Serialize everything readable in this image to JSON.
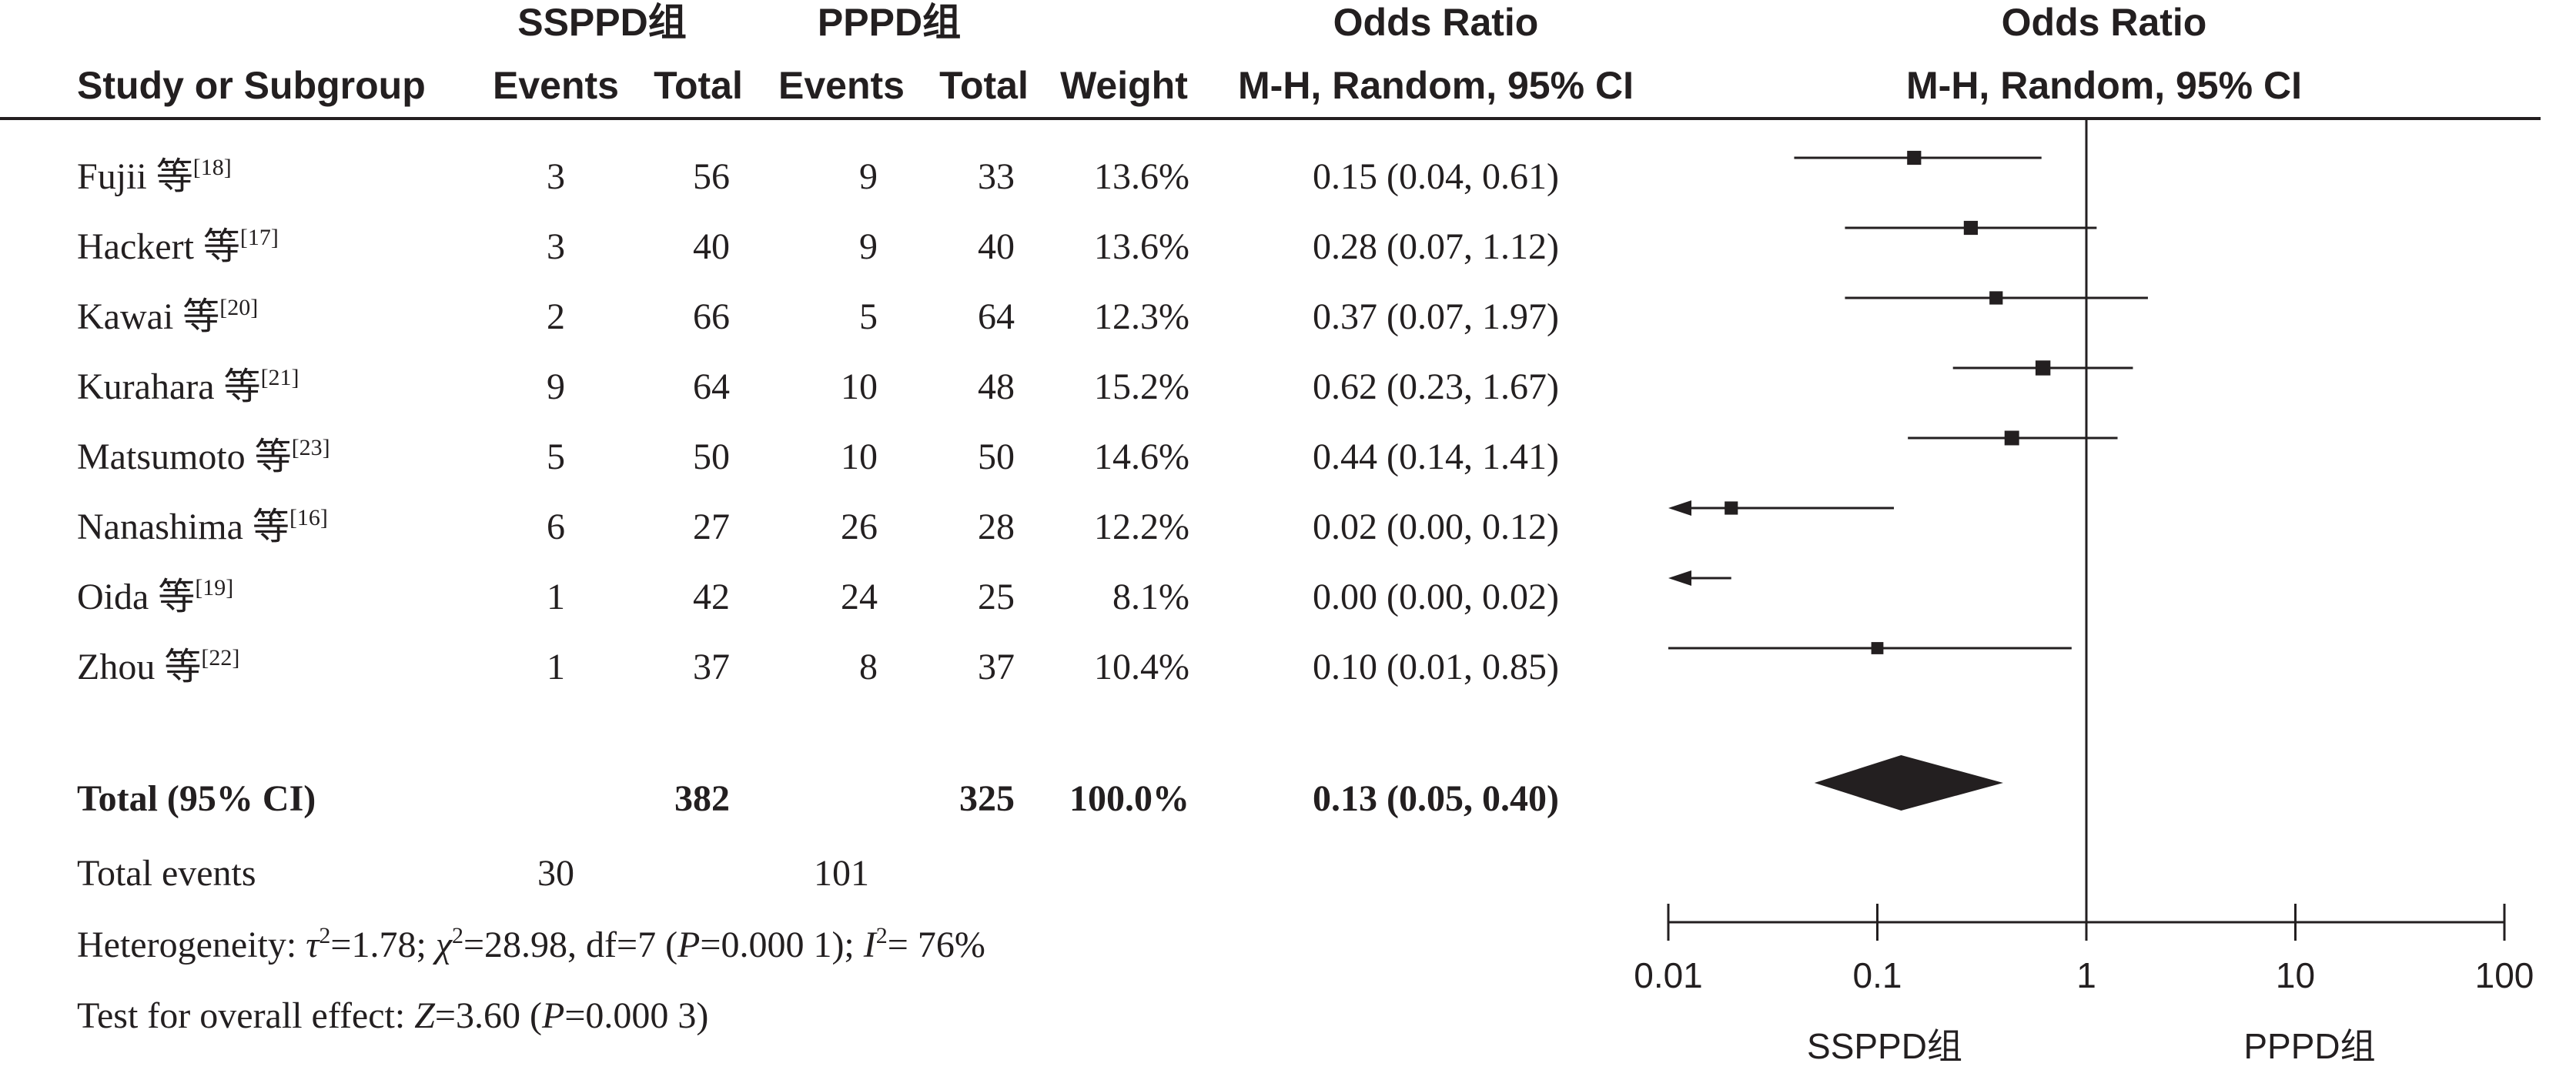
{
  "header": {
    "group1": "SSPPD组",
    "group2": "PPPD组",
    "study_col": "Study or Subgroup",
    "events": "Events",
    "total": "Total",
    "weight": "Weight",
    "or_title": "Odds Ratio",
    "or_method": "M-H, Random, 95% CI"
  },
  "rows": [
    {
      "name": "Fujii 等",
      "ref": "[18]",
      "e1": "3",
      "t1": "56",
      "e2": "9",
      "t2": "33",
      "weight": "13.6%",
      "ci": "0.15 (0.04, 0.61)"
    },
    {
      "name": "Hackert 等",
      "ref": "[17]",
      "e1": "3",
      "t1": "40",
      "e2": "9",
      "t2": "40",
      "weight": "13.6%",
      "ci": "0.28 (0.07, 1.12)"
    },
    {
      "name": "Kawai 等",
      "ref": "[20]",
      "e1": "2",
      "t1": "66",
      "e2": "5",
      "t2": "64",
      "weight": "12.3%",
      "ci": "0.37 (0.07, 1.97)"
    },
    {
      "name": "Kurahara 等",
      "ref": "[21]",
      "e1": "9",
      "t1": "64",
      "e2": "10",
      "t2": "48",
      "weight": "15.2%",
      "ci": "0.62 (0.23, 1.67)"
    },
    {
      "name": "Matsumoto 等",
      "ref": "[23]",
      "e1": "5",
      "t1": "50",
      "e2": "10",
      "t2": "50",
      "weight": "14.6%",
      "ci": "0.44 (0.14, 1.41)"
    },
    {
      "name": "Nanashima 等",
      "ref": "[16]",
      "e1": "6",
      "t1": "27",
      "e2": "26",
      "t2": "28",
      "weight": "12.2%",
      "ci": "0.02 (0.00, 0.12)"
    },
    {
      "name": "Oida 等",
      "ref": "[19]",
      "e1": "1",
      "t1": "42",
      "e2": "24",
      "t2": "25",
      "weight": "8.1%",
      "ci": "0.00 (0.00, 0.02)"
    },
    {
      "name": "Zhou 等",
      "ref": "[22]",
      "e1": "1",
      "t1": "37",
      "e2": "8",
      "t2": "37",
      "weight": "10.4%",
      "ci": "0.10 (0.01, 0.85)"
    }
  ],
  "total": {
    "label": "Total (95% CI)",
    "t1": "382",
    "t2": "325",
    "weight": "100.0%",
    "ci": "0.13 (0.05, 0.40)"
  },
  "total_events": {
    "label": "Total events",
    "e1": "30",
    "e2": "101"
  },
  "heterogeneity": {
    "prefix": "Heterogeneity: ",
    "tau": "τ",
    "tau_val": "=1.78; ",
    "chi": "χ",
    "chi_val": "=28.98, df=7 (",
    "p": "P",
    "p_val": "=0.000 1); ",
    "i": "I",
    "i_val": "= 76%",
    "sq": "2"
  },
  "overall": {
    "prefix": "Test for overall effect: ",
    "z": "Z",
    "z_val": "=3.60 (",
    "p": "P",
    "p_val": "=0.000 3)"
  },
  "axis": {
    "favours_left": "SSPPD组",
    "favours_right": "PPPD组"
  },
  "chart_data": {
    "type": "forest",
    "scale": "log",
    "xlim": [
      0.01,
      100
    ],
    "ticks": [
      {
        "value": 0.01,
        "label": "0.01"
      },
      {
        "value": 0.1,
        "label": "0.1"
      },
      {
        "value": 1,
        "label": "1"
      },
      {
        "value": 10,
        "label": "10"
      },
      {
        "value": 100,
        "label": "100"
      }
    ],
    "reference_line": 1,
    "studies": [
      {
        "study": "Fujii 等",
        "or": 0.15,
        "lower": 0.04,
        "upper": 0.61,
        "weight": 13.6
      },
      {
        "study": "Hackert 等",
        "or": 0.28,
        "lower": 0.07,
        "upper": 1.12,
        "weight": 13.6
      },
      {
        "study": "Kawai 等",
        "or": 0.37,
        "lower": 0.07,
        "upper": 1.97,
        "weight": 12.3
      },
      {
        "study": "Kurahara 等",
        "or": 0.62,
        "lower": 0.23,
        "upper": 1.67,
        "weight": 15.2
      },
      {
        "study": "Matsumoto 等",
        "or": 0.44,
        "lower": 0.14,
        "upper": 1.41,
        "weight": 14.6
      },
      {
        "study": "Nanashima 等",
        "or": 0.02,
        "lower": 0.001,
        "upper": 0.12,
        "weight": 12.2,
        "lower_truncated": true
      },
      {
        "study": "Oida 等",
        "or": 0.002,
        "lower": 0.0001,
        "upper": 0.02,
        "weight": 8.1,
        "lower_truncated": true
      },
      {
        "study": "Zhou 等",
        "or": 0.1,
        "lower": 0.01,
        "upper": 0.85,
        "weight": 10.4
      }
    ],
    "pooled": {
      "or": 0.13,
      "lower": 0.05,
      "upper": 0.4
    }
  }
}
